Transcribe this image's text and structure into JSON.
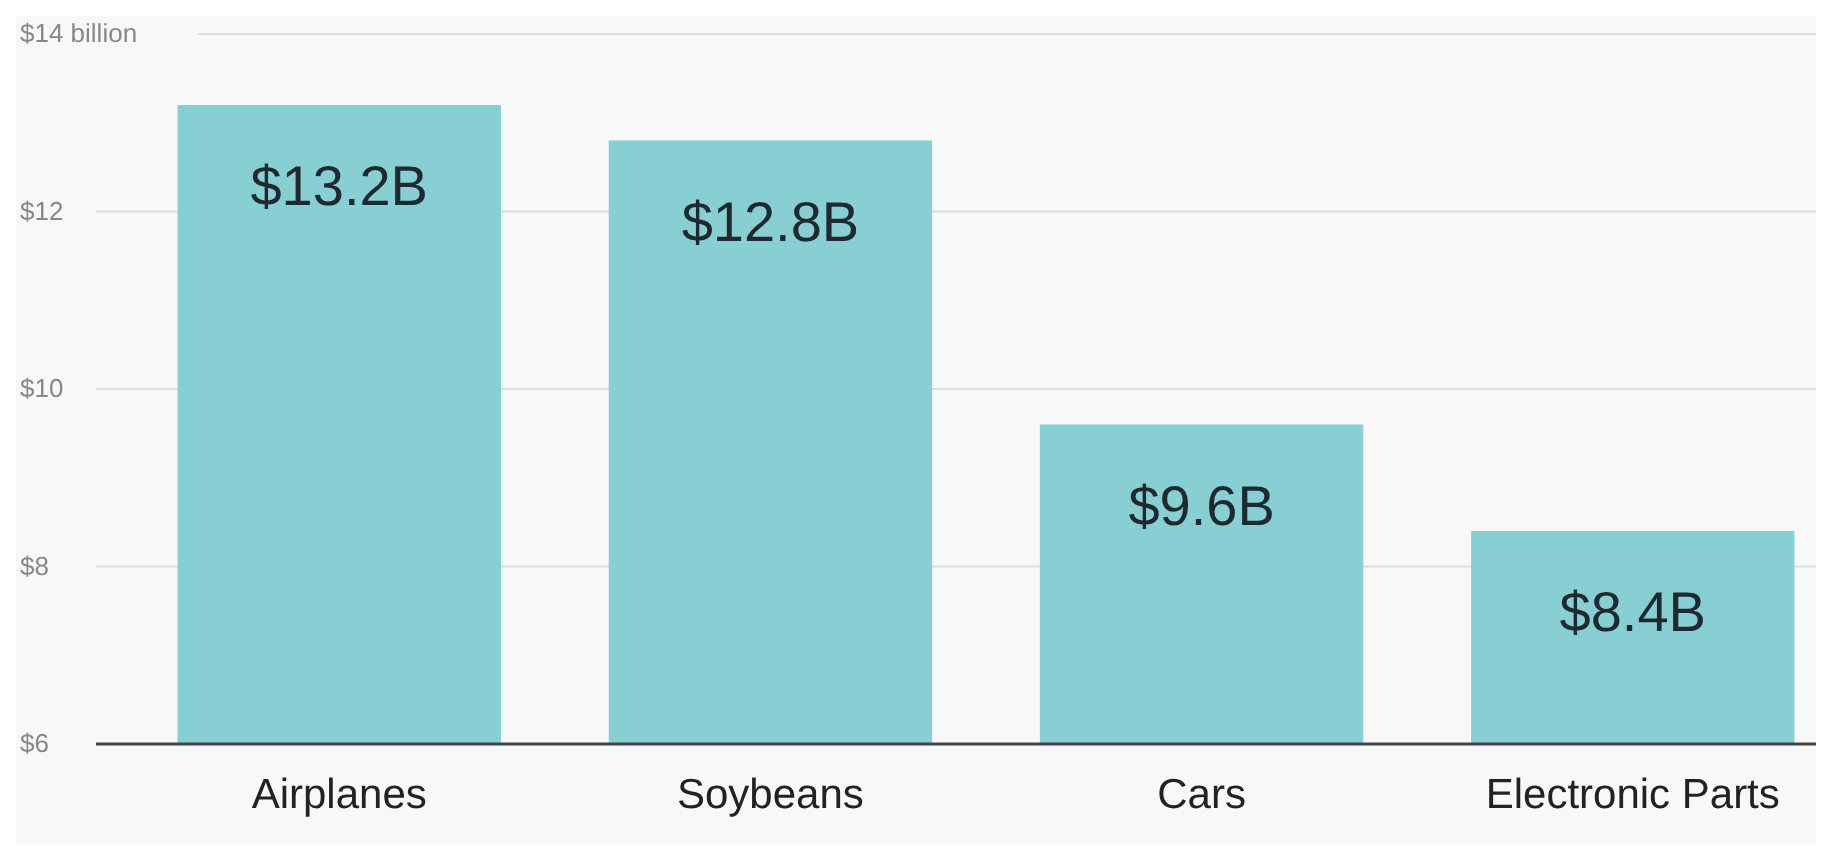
{
  "chart_data": {
    "type": "bar",
    "categories": [
      "Airplanes",
      "Soybeans",
      "Cars",
      "Electronic Parts"
    ],
    "values": [
      13.2,
      12.8,
      9.6,
      8.4
    ],
    "color": "#88cfd4",
    "value_labels": [
      "$13.2B",
      "$12.8B",
      "$9.6B",
      "$8.4B"
    ],
    "ylim": [
      6,
      14
    ],
    "yticks": [
      {
        "value": 6,
        "label": "$6"
      },
      {
        "value": 8,
        "label": "$8"
      },
      {
        "value": 10,
        "label": "$10"
      },
      {
        "value": 12,
        "label": "$12"
      },
      {
        "value": 14,
        "label": "$14 billion"
      }
    ],
    "grid": "y"
  }
}
